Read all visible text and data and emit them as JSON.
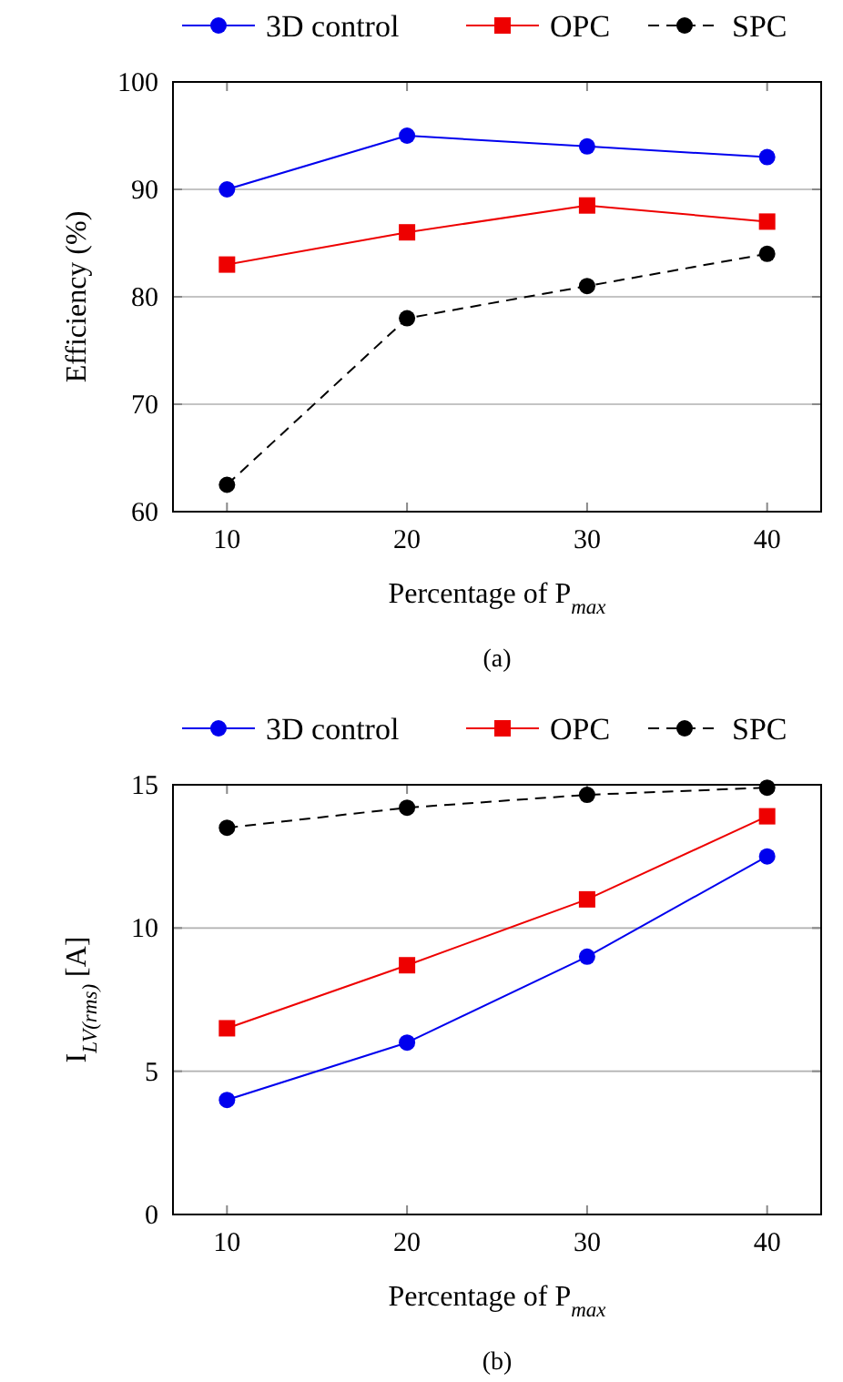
{
  "chart_data": [
    {
      "type": "line",
      "xlabel": "Percentage of P$_{max}$",
      "ylabel": "Efficiency (%)",
      "annotations": [
        "(a)"
      ],
      "x": [
        10,
        20,
        30,
        40
      ],
      "xlim": [
        7,
        43
      ],
      "xticks": [
        10,
        20,
        30,
        40
      ],
      "ylim": [
        60,
        100
      ],
      "yticks": [
        60,
        70,
        80,
        90,
        100
      ],
      "grid": "y",
      "legend": "top",
      "series": [
        {
          "name": "3D control",
          "color": "#0000ee",
          "marker": "circle",
          "line_style": "solid",
          "values": [
            90,
            95,
            94,
            93
          ]
        },
        {
          "name": "OPC",
          "color": "#ee0000",
          "marker": "square",
          "line_style": "solid",
          "values": [
            83,
            86,
            88.5,
            87
          ]
        },
        {
          "name": "SPC",
          "color": "#000000",
          "marker": "circle",
          "line_style": "dashed",
          "values": [
            62.5,
            78,
            81,
            84
          ]
        }
      ]
    },
    {
      "type": "line",
      "xlabel": "Percentage of P$_{max}$",
      "ylabel": "I$_{LV(rms)}$ [A]",
      "annotations": [
        "(b)"
      ],
      "x": [
        10,
        20,
        30,
        40
      ],
      "xlim": [
        7,
        43
      ],
      "xticks": [
        10,
        20,
        30,
        40
      ],
      "ylim": [
        0,
        15
      ],
      "yticks": [
        0,
        5,
        10,
        15
      ],
      "grid": "y",
      "legend": "top",
      "series": [
        {
          "name": "3D control",
          "color": "#0000ee",
          "marker": "circle",
          "line_style": "solid",
          "values": [
            4,
            6,
            9,
            12.5
          ]
        },
        {
          "name": "OPC",
          "color": "#ee0000",
          "marker": "square",
          "line_style": "solid",
          "values": [
            6.5,
            8.7,
            11,
            13.9
          ]
        },
        {
          "name": "SPC",
          "color": "#000000",
          "marker": "circle",
          "line_style": "dashed",
          "values": [
            13.5,
            14.2,
            14.65,
            14.9
          ]
        }
      ]
    }
  ]
}
